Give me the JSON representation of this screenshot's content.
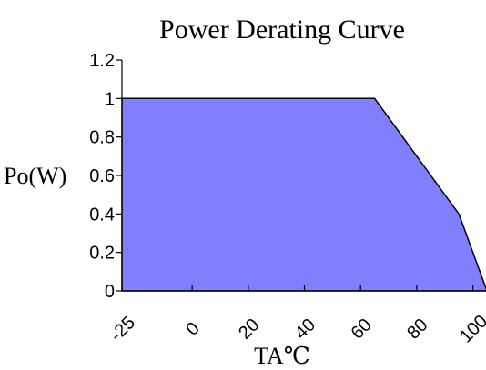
{
  "chart_data": {
    "type": "area",
    "title": "Power Derating Curve",
    "xlabel": "TA℃",
    "ylabel": "Po(W)",
    "x": [
      -25,
      65,
      95,
      105
    ],
    "y": [
      1,
      1,
      0.4,
      0
    ],
    "xlim": [
      -25,
      105
    ],
    "ylim": [
      0,
      1.2
    ],
    "x_ticks": [
      -25,
      0,
      20,
      40,
      60,
      80,
      100
    ],
    "x_tick_labels": [
      "-25",
      "0",
      "20",
      "40",
      "60",
      "80",
      "100"
    ],
    "y_ticks": [
      0,
      0.2,
      0.4,
      0.6,
      0.8,
      1,
      1.2
    ],
    "y_tick_labels": [
      "0",
      "0.2",
      "0.4",
      "0.6",
      "0.8",
      "1",
      "1.2"
    ],
    "grid": false,
    "fill_color": "#8080ff",
    "line_color": "#000000"
  }
}
